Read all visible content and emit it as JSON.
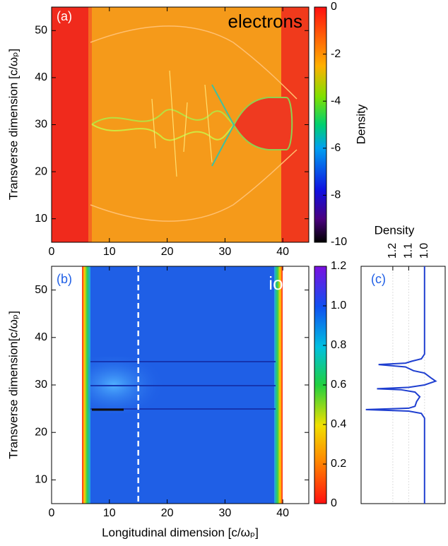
{
  "chart_data": [
    {
      "type": "heatmap",
      "panel_label": "(a)",
      "annotation": "electrons",
      "ylabel": "Transverse dimension [c/ωₚ]",
      "xlim": [
        0,
        44.5
      ],
      "xticks": [
        0,
        10,
        20,
        30,
        40
      ],
      "ylim": [
        5,
        55
      ],
      "yticks": [
        10,
        20,
        30,
        40,
        50
      ],
      "colorbar": {
        "label": "Density",
        "clim": [
          -10,
          0
        ],
        "ticks": [
          -10,
          -8,
          -6,
          -4,
          -2,
          0
        ]
      }
    },
    {
      "type": "heatmap",
      "panel_label": "(b)",
      "annotation": "ions",
      "ylabel": "Transverse dimension[c/ωₚ]",
      "xlabel": "Longitudinal dimension [c/ωₚ]",
      "xlim": [
        0,
        44.5
      ],
      "xticks": [
        0,
        10,
        20,
        30,
        40
      ],
      "ylim": [
        5,
        55
      ],
      "yticks": [
        10,
        20,
        30,
        40,
        50
      ],
      "dashed_line_x": 15,
      "colorbar": {
        "clim": [
          0,
          1.2
        ],
        "ticks": [
          0,
          0.2,
          0.4,
          0.6,
          0.8,
          {
            "value": 1,
            "label": "1.0"
          },
          1.2
        ]
      }
    },
    {
      "type": "line",
      "panel_label": "(c)",
      "title": "Density",
      "orientation": "horizontal",
      "grid": true,
      "xlim": [
        1.4,
        0.87
      ],
      "xticks": [
        1.2,
        1.1,
        {
          "value": 1,
          "label": "1.0"
        }
      ],
      "ylim": [
        5,
        55
      ],
      "x": [
        5,
        23,
        24,
        24.5,
        24.8,
        25.1,
        25.5,
        26.5,
        27.5,
        28.5,
        29,
        29.2,
        29.5,
        30,
        30.8,
        31.5,
        32.5,
        33,
        33.8,
        34.3,
        34.6,
        35,
        35.5,
        36.5,
        55
      ],
      "series": [
        {
          "color": "#1f3fd0",
          "values": [
            1.0,
            1.0,
            1.02,
            1.1,
            1.37,
            1.1,
            1.06,
            1.05,
            1.03,
            1.06,
            1.15,
            1.3,
            1.1,
            1.0,
            0.93,
            0.96,
            1.0,
            1.07,
            1.12,
            1.29,
            1.12,
            1.08,
            1.02,
            1.0,
            1.0
          ]
        }
      ]
    }
  ]
}
